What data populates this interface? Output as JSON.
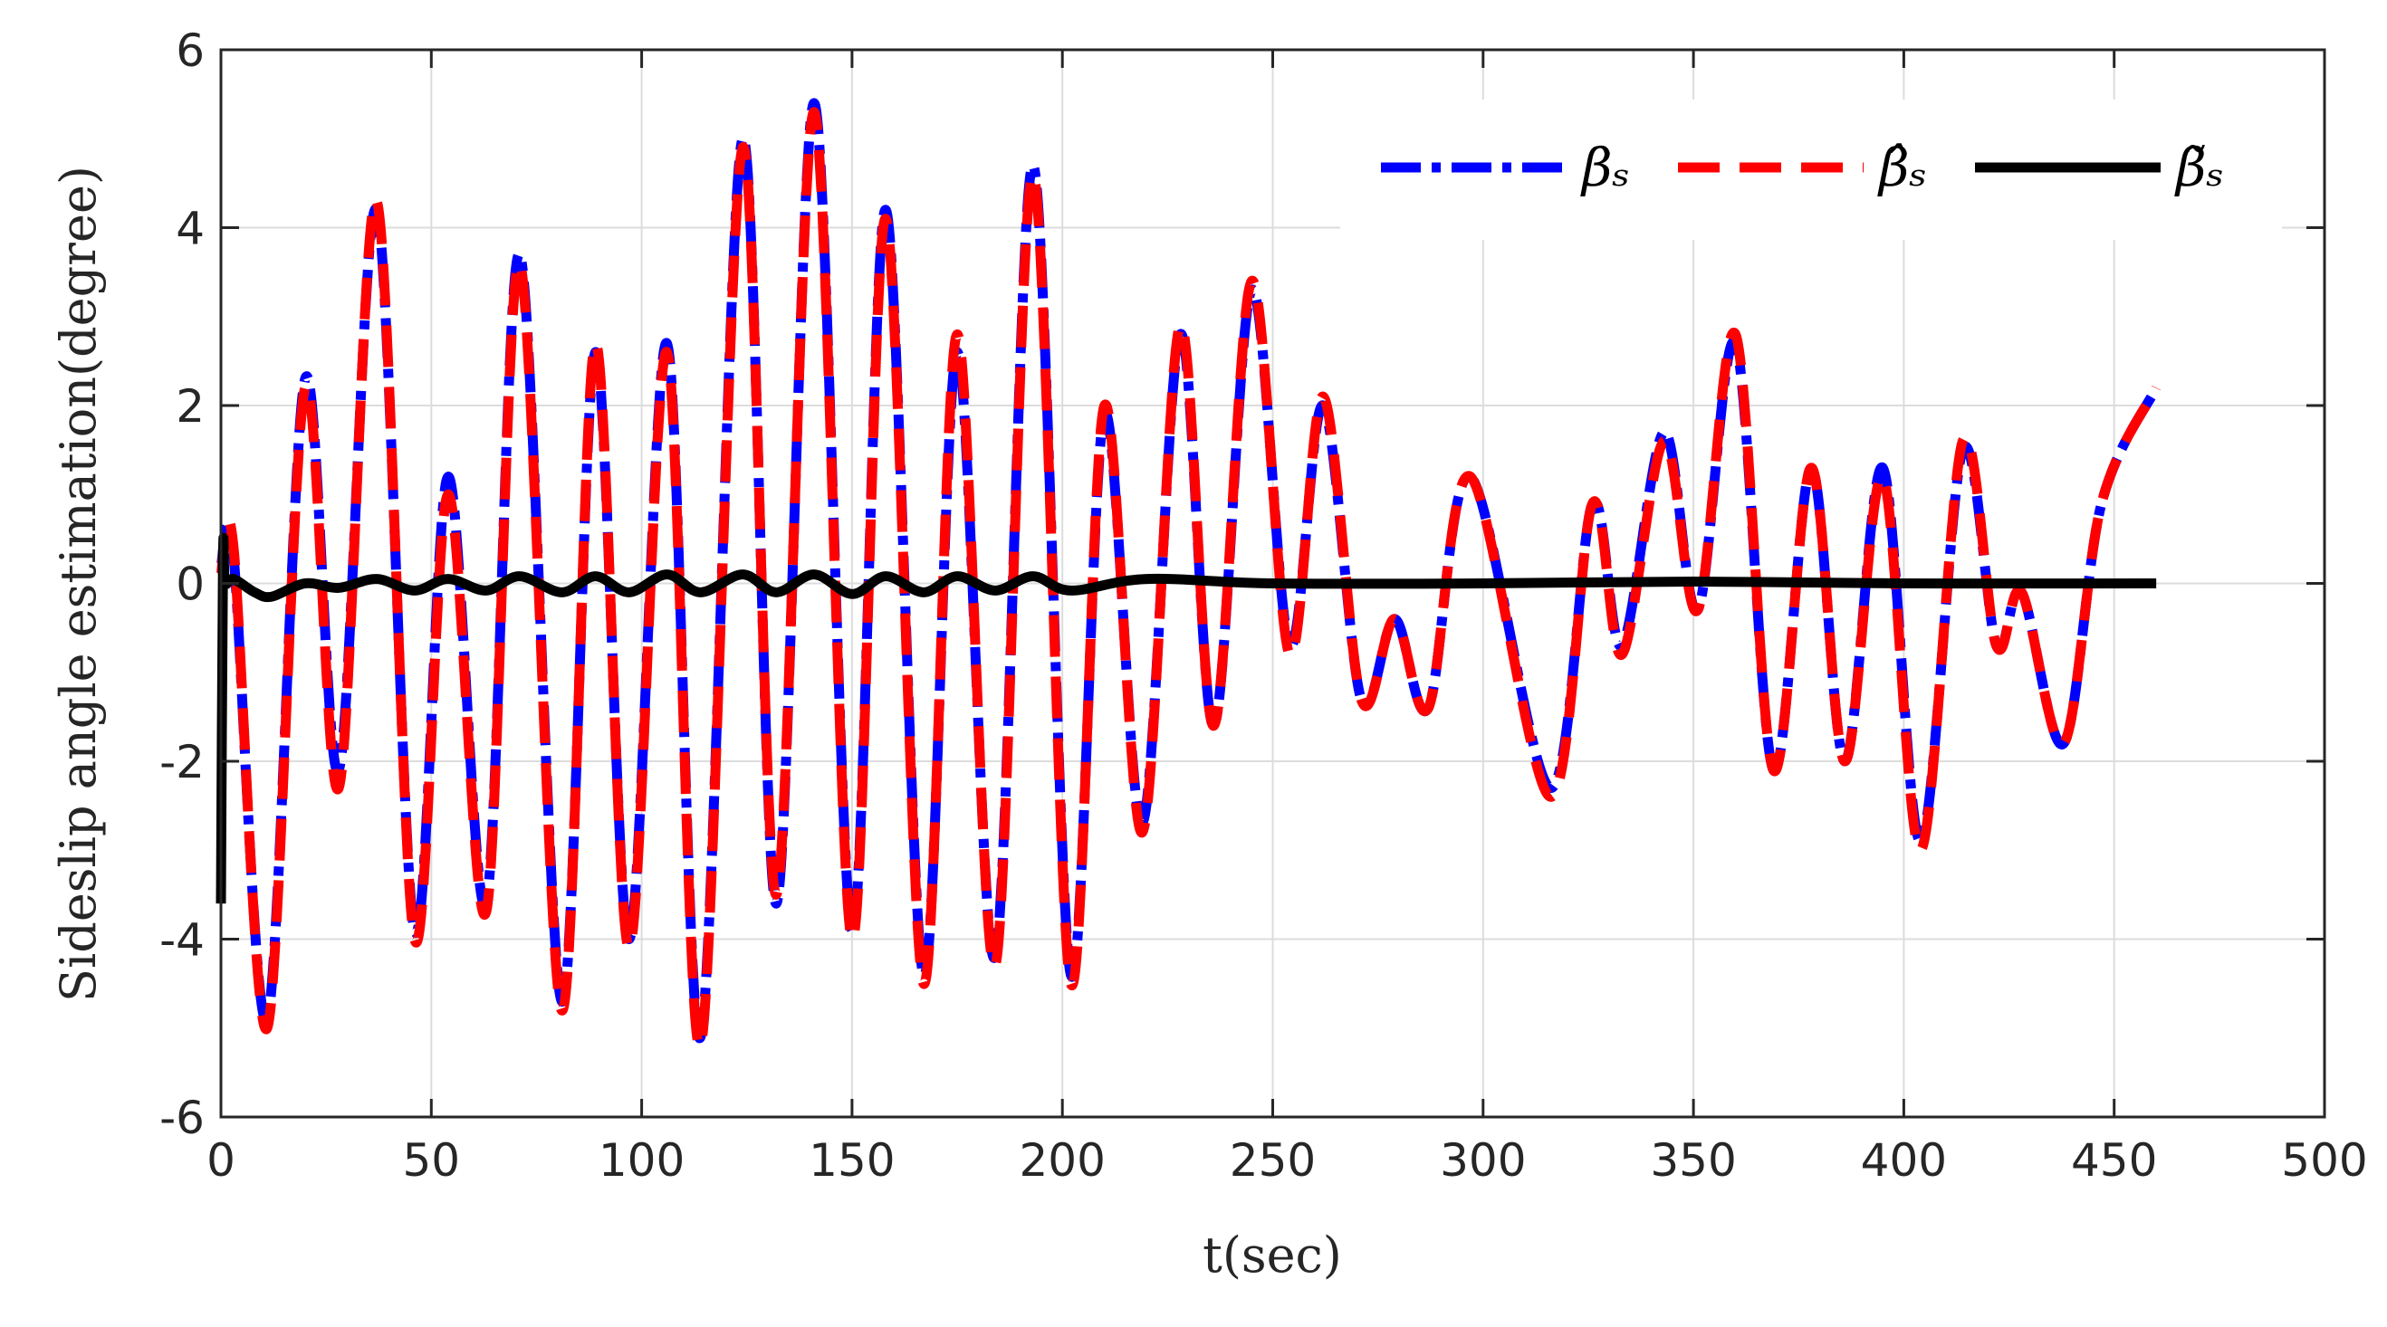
{
  "chart_data": {
    "type": "line",
    "xlabel": "t(sec)",
    "ylabel": "Sideslip angle estimation(degree)",
    "xlim": [
      0,
      500
    ],
    "xticks": [
      0,
      50,
      100,
      150,
      200,
      250,
      300,
      350,
      400,
      450,
      500
    ],
    "ylim": [
      -6,
      6
    ],
    "yticks": [
      -6,
      -4,
      -2,
      0,
      2,
      4,
      6
    ],
    "grid": true,
    "legend": "upper right",
    "series": [
      {
        "name": "βₛ",
        "color": "#0000ff",
        "style": "dashdot",
        "x": [
          0,
          3,
          11,
          20,
          28,
          37,
          46,
          54,
          63,
          71,
          81,
          89,
          97,
          106,
          114,
          124,
          132,
          141,
          150,
          158,
          167,
          175,
          184,
          193,
          202,
          210,
          219,
          228,
          236,
          245,
          254,
          262,
          271,
          279,
          287,
          297,
          316,
          326,
          333,
          343,
          351,
          360,
          369,
          378,
          386,
          395,
          404,
          414,
          422,
          428,
          438,
          447,
          460
        ],
        "values": [
          0.2,
          0.3,
          -4.9,
          2.3,
          -2.1,
          4.2,
          -3.9,
          1.2,
          -3.6,
          3.7,
          -4.7,
          2.6,
          -4.0,
          2.7,
          -5.1,
          5.0,
          -3.6,
          5.4,
          -3.9,
          4.2,
          -4.4,
          2.6,
          -4.2,
          4.7,
          -4.4,
          1.9,
          -2.7,
          2.8,
          -1.6,
          3.3,
          -0.7,
          2.0,
          -1.3,
          -0.4,
          -1.4,
          1.2,
          -2.3,
          0.9,
          -0.7,
          1.7,
          -0.3,
          2.7,
          -2.1,
          1.3,
          -2.0,
          1.3,
          -2.9,
          1.5,
          -0.7,
          -0.1,
          -1.8,
          0.9,
          2.2
        ]
      },
      {
        "name": "β̂ₛ",
        "color": "#ff0000",
        "style": "dashed",
        "x": [
          0,
          3,
          11,
          20,
          28,
          37,
          46,
          54,
          63,
          71,
          81,
          89,
          97,
          106,
          114,
          124,
          132,
          141,
          150,
          158,
          167,
          175,
          184,
          193,
          202,
          210,
          219,
          228,
          236,
          245,
          254,
          262,
          271,
          279,
          287,
          297,
          316,
          326,
          333,
          343,
          351,
          360,
          369,
          378,
          386,
          395,
          404,
          414,
          422,
          428,
          438,
          447,
          460
        ],
        "values": [
          0.1,
          0.4,
          -5.0,
          2.2,
          -2.3,
          4.3,
          -4.0,
          1.0,
          -3.7,
          3.6,
          -4.8,
          2.7,
          -4.1,
          2.6,
          -5.2,
          4.9,
          -3.5,
          5.3,
          -4.0,
          4.1,
          -4.5,
          2.8,
          -4.3,
          4.6,
          -4.5,
          2.0,
          -2.8,
          2.9,
          -1.6,
          3.4,
          -0.8,
          2.1,
          -1.3,
          -0.4,
          -1.4,
          1.2,
          -2.4,
          0.9,
          -0.8,
          1.6,
          -0.3,
          2.8,
          -2.1,
          1.3,
          -2.0,
          1.2,
          -3.0,
          1.6,
          -0.7,
          -0.1,
          -1.8,
          0.9,
          2.2
        ]
      },
      {
        "name": "β̃ₛ",
        "color": "#000000",
        "style": "solid",
        "x": [
          0,
          0.5,
          1,
          3,
          8,
          12,
          20,
          28,
          37,
          46,
          54,
          63,
          71,
          81,
          89,
          97,
          106,
          114,
          124,
          132,
          141,
          150,
          158,
          167,
          175,
          184,
          193,
          202,
          220,
          250,
          300,
          350,
          400,
          460
        ],
        "values": [
          -3.6,
          0.3,
          0.0,
          0.05,
          -0.1,
          -0.15,
          0.0,
          -0.05,
          0.05,
          -0.08,
          0.05,
          -0.08,
          0.08,
          -0.1,
          0.08,
          -0.1,
          0.1,
          -0.1,
          0.1,
          -0.1,
          0.1,
          -0.12,
          0.08,
          -0.1,
          0.08,
          -0.08,
          0.08,
          -0.08,
          0.05,
          0.0,
          0.0,
          0.02,
          0.0,
          0.0
        ]
      }
    ]
  }
}
